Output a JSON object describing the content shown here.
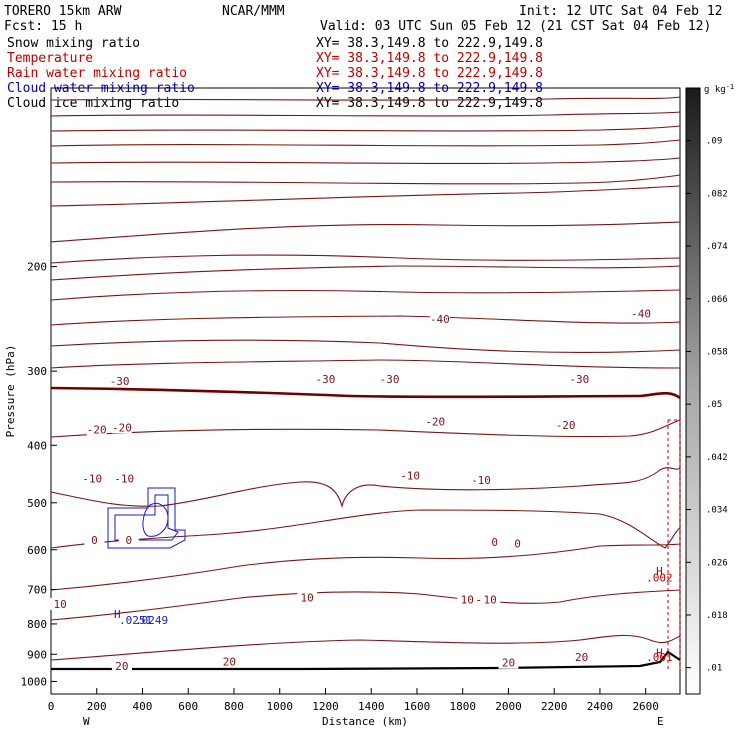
{
  "header": {
    "model": "TORERO  15km ARW",
    "center": "NCAR/MMM",
    "init": "Init: 12 UTC Sat 04 Feb 12",
    "fcst": "Fcst:   15 h",
    "valid": "Valid: 03 UTC Sun 05 Feb 12 (21 CST Sat 04 Feb 12)"
  },
  "fields": [
    {
      "name": "Snow mixing ratio",
      "xy": "XY=  38.3,149.8 to 222.9,149.8",
      "color": "#000000"
    },
    {
      "name": "Temperature",
      "xy": "XY=  38.3,149.8 to 222.9,149.8",
      "color": "#c00000"
    },
    {
      "name": "Rain water mixing ratio",
      "xy": "XY=  38.3,149.8 to 222.9,149.8",
      "color": "#c00000"
    },
    {
      "name": "Cloud water mixing ratio",
      "xy": "XY=  38.3,149.8 to 222.9,149.8",
      "color": "#0000c0"
    },
    {
      "name": "Cloud ice mixing ratio",
      "xy": "XY=  38.3,149.8 to 222.9,149.8",
      "color": "#000000"
    }
  ],
  "chart_data": {
    "type": "contour cross-section",
    "xlabel": "Distance (km)",
    "ylabel": "Pressure (hPa)",
    "xlim": [
      0,
      2750
    ],
    "x_ticks": [
      0,
      200,
      400,
      600,
      800,
      1000,
      1200,
      1400,
      1600,
      1800,
      2000,
      2200,
      2400,
      2600
    ],
    "y_axis": "log-pressure",
    "y_ticks": [
      200,
      300,
      400,
      500,
      600,
      700,
      800,
      900,
      1000
    ],
    "x_end_labels": {
      "left": "W",
      "right": "E"
    },
    "colorbar": {
      "unit": "g kg-1",
      "ticks": [
        ".01",
        ".018",
        ".026",
        ".034",
        ".042",
        ".05",
        ".058",
        ".066",
        ".074",
        ".082",
        ".09"
      ],
      "range": [
        0.006,
        0.098
      ],
      "shading": "grayscale, darker = higher"
    },
    "temperature_contours": {
      "interval_C": 5,
      "line_color": "#7a1515",
      "zero_line_color": "#6e0000",
      "labels": [
        {
          "text": "-40",
          "x": 1700,
          "p": 245
        },
        {
          "text": "-40",
          "x": 2580,
          "p": 240
        },
        {
          "text": "-30",
          "x": 300,
          "p": 312
        },
        {
          "text": "-30",
          "x": 1200,
          "p": 309
        },
        {
          "text": "-30",
          "x": 1480,
          "p": 309
        },
        {
          "text": "-30",
          "x": 2310,
          "p": 309
        },
        {
          "text": "-20",
          "x": 200,
          "p": 376
        },
        {
          "text": "-20",
          "x": 310,
          "p": 373
        },
        {
          "text": "-20",
          "x": 1680,
          "p": 365
        },
        {
          "text": "-20",
          "x": 2250,
          "p": 370
        },
        {
          "text": "-10",
          "x": 180,
          "p": 455
        },
        {
          "text": "-10",
          "x": 320,
          "p": 455
        },
        {
          "text": "-10",
          "x": 1570,
          "p": 450
        },
        {
          "text": "-10",
          "x": 1880,
          "p": 458
        },
        {
          "text": "0",
          "x": 190,
          "p": 578
        },
        {
          "text": "0",
          "x": 340,
          "p": 578
        },
        {
          "text": "0",
          "x": 1940,
          "p": 582
        },
        {
          "text": "0",
          "x": 2040,
          "p": 585
        },
        {
          "text": "10",
          "x": 40,
          "p": 740
        },
        {
          "text": "10",
          "x": 1120,
          "p": 722
        },
        {
          "text": "10",
          "x": 1820,
          "p": 728
        },
        {
          "text": "10",
          "x": 1920,
          "p": 728
        },
        {
          "text": "20",
          "x": 310,
          "p": 942
        },
        {
          "text": "20",
          "x": 780,
          "p": 925
        },
        {
          "text": "20",
          "x": 2000,
          "p": 930
        },
        {
          "text": "20",
          "x": 2320,
          "p": 910
        }
      ]
    },
    "rain_water_markers": [
      {
        "text": "H",
        "x": 2660,
        "p": 652
      },
      {
        "text": ".002",
        "x": 2660,
        "p": 668
      },
      {
        "text": "H",
        "x": 2660,
        "p": 893
      },
      {
        "text": ".001",
        "x": 2660,
        "p": 909
      }
    ],
    "cloud_water_markers": [
      {
        "text": "H",
        "x": 290,
        "p": 770
      },
      {
        "text": ".0251",
        "x": 370,
        "p": 788
      },
      {
        "text": ".0249",
        "x": 440,
        "p": 788
      }
    ]
  }
}
